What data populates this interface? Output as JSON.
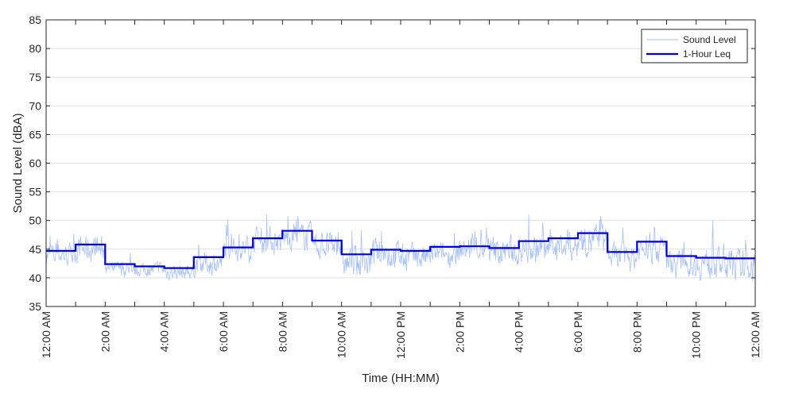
{
  "chart_data": {
    "type": "line",
    "title": "",
    "xlabel": "Time (HH:MM)",
    "ylabel": "Sound Level (dBA)",
    "ylim": [
      35,
      85
    ],
    "xlim_hours": [
      0,
      24
    ],
    "y_ticks": [
      35,
      40,
      45,
      50,
      55,
      60,
      65,
      70,
      75,
      80,
      85
    ],
    "x_ticks": [
      {
        "hour": 0,
        "label": "12:00 AM"
      },
      {
        "hour": 2,
        "label": "2:00 AM"
      },
      {
        "hour": 4,
        "label": "4:00 AM"
      },
      {
        "hour": 6,
        "label": "6:00 AM"
      },
      {
        "hour": 8,
        "label": "8:00 AM"
      },
      {
        "hour": 10,
        "label": "10:00 AM"
      },
      {
        "hour": 12,
        "label": "12:00 PM"
      },
      {
        "hour": 14,
        "label": "2:00 PM"
      },
      {
        "hour": 16,
        "label": "4:00 PM"
      },
      {
        "hour": 18,
        "label": "6:00 PM"
      },
      {
        "hour": 20,
        "label": "8:00 PM"
      },
      {
        "hour": 22,
        "label": "10:00 PM"
      },
      {
        "hour": 24,
        "label": "12:00 AM"
      }
    ],
    "grid": "y",
    "legend_position": "top-right",
    "series": [
      {
        "name": "Sound Level",
        "color": "#a9c2f5",
        "style": "thin-line",
        "samples_per_hour": 60,
        "hourly_mean": [
          44.0,
          45.0,
          41.5,
          41.5,
          41.0,
          42.5,
          45.0,
          46.5,
          47.0,
          45.5,
          42.5,
          44.0,
          43.5,
          44.0,
          45.0,
          44.5,
          45.0,
          45.5,
          46.5,
          43.5,
          45.0,
          42.5,
          42.5,
          42.0
        ],
        "hourly_spread": [
          3.0,
          3.5,
          2.0,
          2.0,
          2.0,
          3.0,
          3.0,
          3.5,
          3.5,
          3.5,
          4.0,
          4.0,
          3.5,
          3.0,
          3.5,
          4.0,
          4.0,
          4.0,
          4.0,
          3.5,
          3.5,
          3.5,
          4.0,
          4.0
        ]
      },
      {
        "name": "1-Hour Leq",
        "color": "#0000dd",
        "style": "step",
        "values": [
          44.7,
          45.8,
          42.4,
          42.0,
          41.7,
          43.6,
          45.3,
          46.9,
          48.2,
          46.5,
          44.1,
          44.9,
          44.7,
          45.4,
          45.5,
          45.2,
          46.4,
          46.9,
          47.8,
          44.5,
          46.3,
          43.8,
          43.5,
          43.4
        ]
      }
    ]
  }
}
